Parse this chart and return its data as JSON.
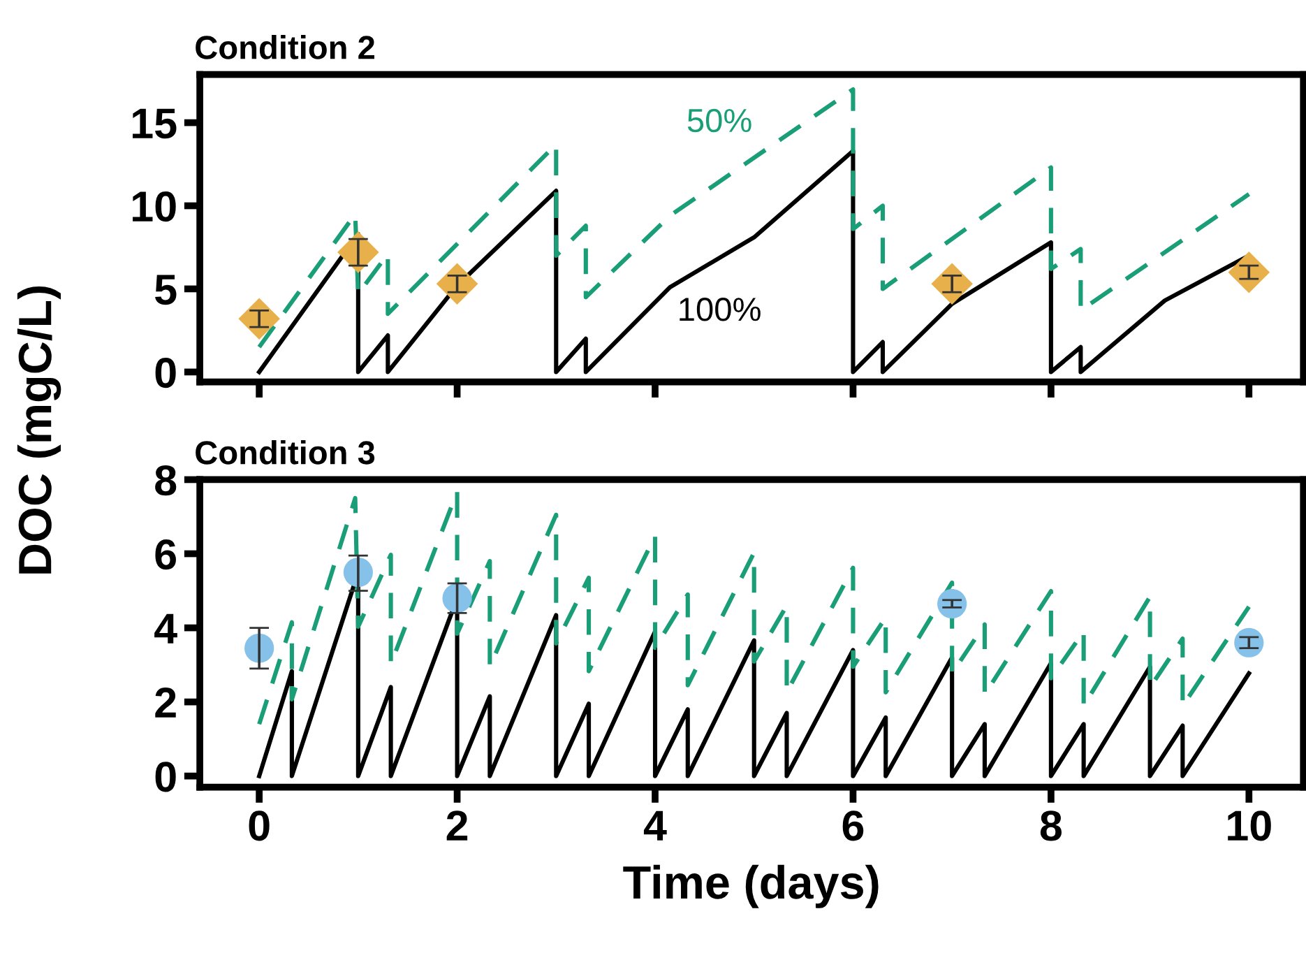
{
  "chart_data": [
    {
      "type": "line",
      "title": "Condition 2",
      "ylabel": "DOC (mgC/L)",
      "xlim": [
        -0.6,
        10.55
      ],
      "xticks": [
        0,
        2,
        4,
        6,
        8,
        10
      ],
      "ylim": [
        -0.6,
        17.9
      ],
      "yticks": [
        0,
        5,
        10,
        15
      ],
      "tick_labels": "y",
      "grid": false,
      "series": [
        {
          "name": "100%",
          "color": "#000000",
          "line_style": "solid",
          "marker": "none",
          "x": [
            0,
            1,
            1,
            1.3,
            1.3,
            2,
            3,
            3,
            3.3,
            3.3,
            4.15,
            5,
            6,
            6,
            6.3,
            6.3,
            7,
            8,
            8,
            8.3,
            8.3,
            9.15,
            10
          ],
          "values": [
            0,
            8.3,
            0,
            2.2,
            0,
            5.2,
            10.9,
            0,
            2.0,
            0,
            5.1,
            8.1,
            13.3,
            0,
            1.8,
            0,
            4.1,
            7.8,
            0,
            1.5,
            0,
            4.3,
            7.0
          ]
        },
        {
          "name": "50%",
          "color": "#1a9e77",
          "line_style": "dashed",
          "marker": "none",
          "x": [
            0,
            0.97,
            1,
            1.3,
            1.3,
            3,
            3,
            3.3,
            3.3,
            4.15,
            6,
            6,
            6.3,
            6.3,
            8,
            8,
            8.3,
            8.3,
            10
          ],
          "values": [
            1.5,
            9.5,
            4.7,
            7.1,
            3.5,
            13.7,
            7.0,
            8.8,
            4.5,
            9.4,
            17.0,
            8.6,
            10.0,
            5.0,
            12.3,
            6.2,
            7.4,
            3.7,
            10.7
          ]
        },
        {
          "type": "scatter",
          "color": "#e8b04a",
          "marker": "diamond",
          "x": [
            0,
            1,
            2,
            7,
            10
          ],
          "values": [
            3.2,
            7.2,
            5.3,
            5.3,
            6.0
          ],
          "errors": [
            0.5,
            0.8,
            0.5,
            0.5,
            0.4
          ]
        }
      ]
    },
    {
      "type": "line",
      "title": "Condition 3",
      "xlabel": "Time (days)",
      "xlim": [
        -0.6,
        10.55
      ],
      "xticks": [
        0,
        2,
        4,
        6,
        8,
        10
      ],
      "ylim": [
        -0.3,
        8.0
      ],
      "yticks": [
        0,
        2,
        4,
        6,
        8
      ],
      "grid": false,
      "series": [
        {
          "color": "#000000",
          "line_style": "solid",
          "marker": "none",
          "x": [
            0,
            0.33,
            0.33,
            1,
            1,
            1.33,
            1.33,
            2,
            2,
            2.33,
            2.33,
            3,
            3,
            3.33,
            3.33,
            4,
            4,
            4.33,
            4.33,
            5,
            5,
            5.33,
            5.33,
            6,
            6,
            6.33,
            6.33,
            7,
            7,
            7.33,
            7.33,
            8,
            8,
            8.33,
            8.33,
            9,
            9,
            9.33,
            9.33,
            10
          ],
          "values": [
            0,
            2.83,
            0,
            5.5,
            0,
            2.4,
            0,
            4.8,
            0,
            2.15,
            0,
            4.34,
            0,
            1.95,
            0,
            3.9,
            0,
            1.8,
            0,
            3.66,
            0,
            1.7,
            0,
            3.4,
            0,
            1.58,
            0,
            3.2,
            0,
            1.4,
            0,
            3.05,
            0,
            1.4,
            0,
            2.95,
            0,
            1.36,
            0,
            2.77
          ]
        },
        {
          "color": "#1a9e77",
          "line_style": "dashed",
          "marker": "none",
          "x": [
            0,
            0.33,
            0.33,
            0.97,
            1,
            1.33,
            1.33,
            2,
            2,
            2.33,
            2.33,
            3,
            3,
            3.33,
            3.33,
            4,
            4,
            4.33,
            4.33,
            5,
            5,
            5.33,
            5.33,
            6,
            6,
            6.33,
            6.33,
            7,
            7,
            7.33,
            7.33,
            8,
            8,
            8.33,
            8.33,
            9,
            9,
            9.33,
            9.33,
            10
          ],
          "values": [
            1.4,
            4.15,
            2.07,
            7.5,
            4.03,
            5.97,
            3.02,
            7.67,
            3.84,
            5.8,
            2.95,
            7.05,
            3.58,
            5.35,
            2.83,
            6.48,
            3.46,
            4.9,
            2.45,
            6.03,
            3.09,
            4.6,
            2.26,
            5.62,
            2.95,
            4.28,
            2.26,
            5.22,
            2.77,
            4.09,
            2.2,
            4.99,
            2.64,
            3.9,
            1.89,
            4.84,
            2.39,
            3.71,
            1.89,
            4.57
          ]
        },
        {
          "type": "scatter",
          "color": "#85c1e9",
          "marker": "circle",
          "x": [
            0,
            1,
            2,
            7,
            10
          ],
          "values": [
            3.45,
            5.5,
            4.8,
            4.65,
            3.6
          ],
          "errors": [
            [
              2.9,
              4.0
            ],
            [
              5.0,
              5.95
            ],
            [
              4.4,
              5.2
            ],
            [
              4.55,
              4.75
            ],
            [
              3.45,
              3.75
            ]
          ]
        }
      ]
    }
  ]
}
